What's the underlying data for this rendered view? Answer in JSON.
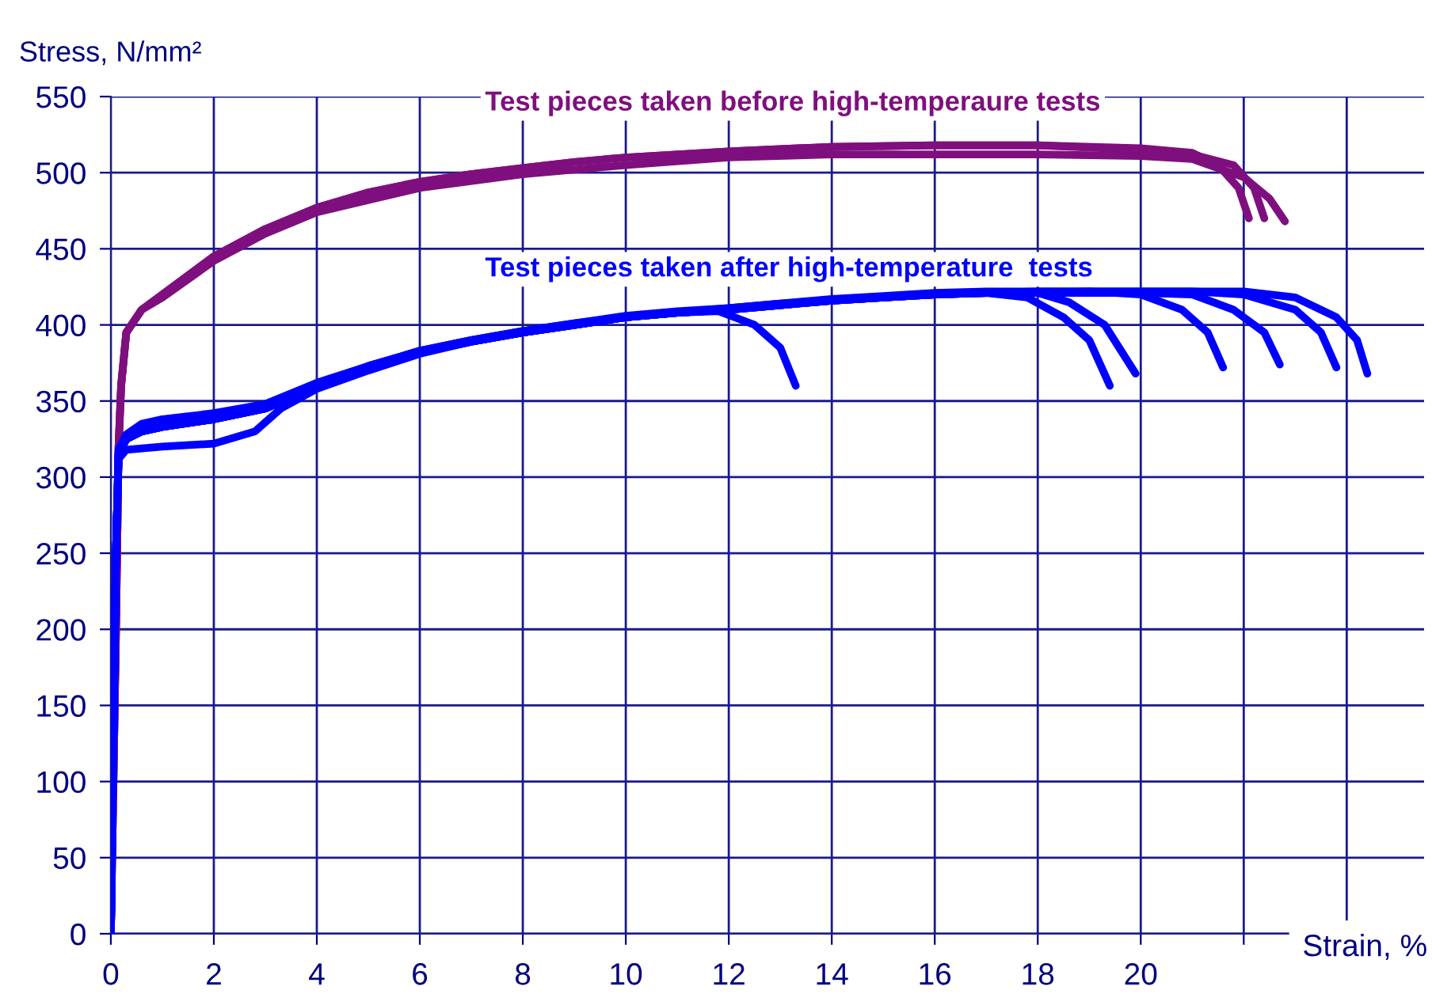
{
  "chart_data": {
    "type": "line",
    "xlabel": "Strain, %",
    "ylabel": "Stress, N/mm²",
    "xlim": [
      0,
      25.5
    ],
    "ylim": [
      0,
      550
    ],
    "xticks": [
      0,
      2,
      4,
      6,
      8,
      10,
      12,
      14,
      16,
      18,
      20,
      {
        "value": 22,
        "label": null
      },
      {
        "value": 24,
        "label": null
      }
    ],
    "yticks": [
      0,
      50,
      100,
      150,
      200,
      250,
      300,
      350,
      400,
      450,
      500,
      550
    ],
    "grid": true,
    "series": [
      {
        "name": "Test pieces taken before high-temperaure tests",
        "color": "#7f0f7e",
        "x": [
          0,
          0.1,
          0.15,
          0.2,
          0.3,
          0.6,
          1,
          2,
          3,
          4,
          5,
          6,
          7,
          8,
          9,
          10,
          12,
          14,
          16,
          18,
          20,
          21,
          21.5,
          21.9,
          22.1
        ],
        "values": [
          0,
          200,
          320,
          360,
          395,
          410,
          420,
          445,
          463,
          477,
          487,
          494,
          499,
          503,
          507,
          510,
          514,
          517,
          518,
          518,
          516,
          513,
          505,
          490,
          470
        ]
      },
      {
        "color": "#7f0f7e",
        "x": [
          0,
          0.1,
          0.15,
          0.2,
          0.3,
          0.6,
          1,
          2,
          3,
          4,
          5,
          6,
          7,
          8,
          9,
          10,
          12,
          14,
          16,
          18,
          20,
          21,
          21.8,
          22.2,
          22.4
        ],
        "values": [
          0,
          200,
          320,
          360,
          395,
          410,
          420,
          445,
          463,
          477,
          487,
          494,
          499,
          503,
          507,
          510,
          514,
          517,
          518,
          518,
          515,
          512,
          505,
          490,
          470
        ]
      },
      {
        "color": "#7f0f7e",
        "x": [
          0,
          0.1,
          0.15,
          0.2,
          0.3,
          0.6,
          1,
          2,
          3,
          4,
          6,
          8,
          10,
          12,
          14,
          16,
          18,
          20,
          21,
          22,
          22.5,
          22.8
        ],
        "values": [
          0,
          200,
          320,
          360,
          395,
          410,
          418,
          442,
          460,
          474,
          490,
          499,
          505,
          510,
          512,
          512,
          512,
          511,
          509,
          497,
          483,
          468
        ]
      },
      {
        "name": "Test pieces taken after high-temperature  tests",
        "color": "#0000ff",
        "x": [
          0,
          0.05,
          0.1,
          0.15,
          0.3,
          0.6,
          1,
          2,
          3,
          4,
          5,
          6,
          7,
          8,
          9,
          10,
          11,
          11.8,
          12.5,
          13,
          13.3
        ],
        "values": [
          0,
          130,
          250,
          315,
          325,
          330,
          333,
          338,
          345,
          360,
          372,
          382,
          389,
          395,
          400,
          405,
          408,
          409,
          400,
          385,
          360
        ]
      },
      {
        "color": "#0000ff",
        "x": [
          0,
          0.05,
          0.1,
          0.15,
          0.3,
          1,
          2,
          2.8,
          3.3,
          4,
          5,
          6,
          7,
          8,
          9,
          10,
          11,
          12,
          13,
          14,
          15,
          16,
          17,
          17.8,
          18.5,
          19,
          19.4
        ],
        "values": [
          0,
          130,
          250,
          312,
          318,
          320,
          322,
          330,
          345,
          358,
          370,
          381,
          389,
          395,
          400,
          405,
          408,
          410,
          413,
          416,
          418,
          420,
          421,
          418,
          405,
          390,
          360
        ]
      },
      {
        "color": "#0000ff",
        "x": [
          0,
          0.05,
          0.1,
          0.15,
          0.3,
          0.6,
          1,
          2,
          3,
          4,
          5,
          6,
          7,
          8,
          9,
          10,
          11,
          12,
          13,
          14,
          15,
          16,
          17,
          18,
          18.6,
          19.3,
          19.9
        ],
        "values": [
          0,
          130,
          250,
          315,
          325,
          330,
          333,
          338,
          345,
          360,
          372,
          382,
          389,
          395,
          400,
          405,
          408,
          410,
          413,
          416,
          418,
          420,
          421,
          421,
          415,
          400,
          368
        ]
      },
      {
        "color": "#0000ff",
        "x": [
          0,
          0.05,
          0.1,
          0.15,
          0.3,
          0.6,
          1,
          2,
          3,
          4,
          5,
          6,
          7,
          8,
          9,
          10,
          11,
          12,
          13,
          14,
          15,
          16,
          17,
          18,
          19,
          20,
          20.8,
          21.3,
          21.6
        ],
        "values": [
          0,
          130,
          250,
          318,
          328,
          335,
          338,
          342,
          348,
          362,
          373,
          383,
          390,
          396,
          401,
          405,
          408,
          411,
          414,
          416,
          418,
          420,
          421,
          421,
          422,
          420,
          410,
          395,
          372
        ]
      },
      {
        "color": "#0000ff",
        "x": [
          0,
          0.05,
          0.1,
          0.15,
          0.3,
          0.6,
          1,
          2,
          3,
          4,
          5,
          6,
          7,
          8,
          9,
          10,
          11,
          12,
          13,
          14,
          15,
          16,
          17,
          18,
          19,
          20,
          21,
          21.8,
          22.4,
          22.7
        ],
        "values": [
          0,
          130,
          250,
          315,
          325,
          330,
          333,
          338,
          345,
          360,
          372,
          382,
          389,
          395,
          400,
          405,
          408,
          410,
          413,
          416,
          418,
          420,
          421,
          421,
          421,
          421,
          420,
          410,
          395,
          374
        ]
      },
      {
        "color": "#0000ff",
        "x": [
          0,
          0.05,
          0.1,
          0.15,
          0.3,
          0.6,
          1,
          2,
          3,
          4,
          5,
          6,
          7,
          8,
          9,
          10,
          11,
          12,
          13,
          14,
          15,
          16,
          17,
          18,
          19,
          20,
          21,
          22,
          23,
          23.5,
          23.8
        ],
        "values": [
          0,
          130,
          250,
          315,
          325,
          332,
          336,
          340,
          346,
          361,
          373,
          383,
          390,
          396,
          401,
          406,
          409,
          411,
          414,
          417,
          419,
          421,
          422,
          422,
          422,
          422,
          422,
          420,
          410,
          395,
          372
        ]
      },
      {
        "color": "#0000ff",
        "x": [
          0,
          0.05,
          0.1,
          0.15,
          0.3,
          0.6,
          1,
          2,
          3,
          4,
          5,
          6,
          7,
          8,
          9,
          10,
          11,
          12,
          13,
          14,
          15,
          16,
          17,
          18,
          19,
          20,
          21,
          22,
          23,
          23.8,
          24.2,
          24.4
        ],
        "values": [
          0,
          130,
          250,
          315,
          325,
          330,
          333,
          338,
          345,
          360,
          372,
          382,
          389,
          395,
          400,
          405,
          408,
          410,
          413,
          416,
          418,
          420,
          421,
          422,
          422,
          422,
          422,
          422,
          418,
          405,
          390,
          368
        ]
      }
    ]
  }
}
